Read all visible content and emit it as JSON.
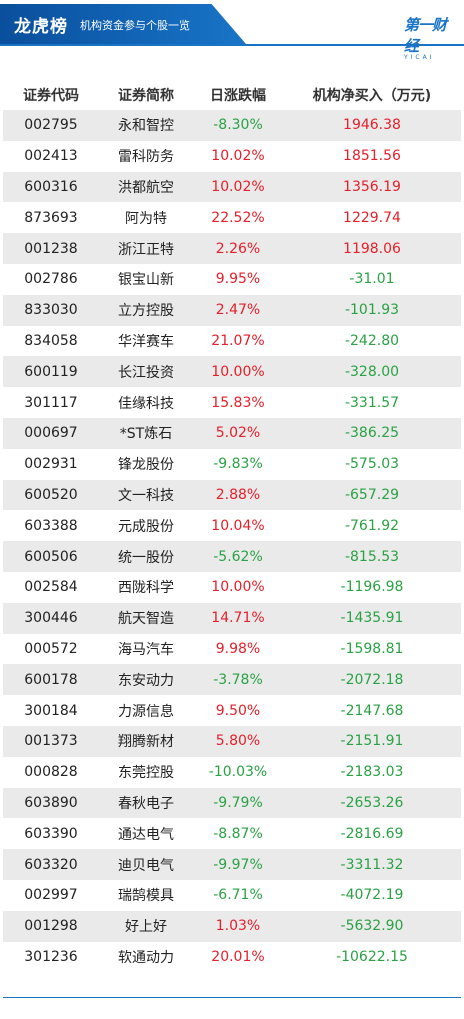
{
  "header": {
    "title": "龙虎榜",
    "subtitle": "机构资金参与个股一览",
    "logo_text": "第一财经",
    "logo_sub": "YICAI"
  },
  "colors": {
    "brand_blue": "#1a74c6",
    "up_red": "#e5202a",
    "down_green": "#2aa244",
    "stripe_gray": "#eaeaea"
  },
  "table": {
    "columns": [
      "证券代码",
      "证券简称",
      "日涨跌幅",
      "机构净买入（万元)"
    ],
    "rows": [
      {
        "code": "002795",
        "name": "永和智控",
        "change": "-8.30%",
        "net_buy": "1946.38"
      },
      {
        "code": "002413",
        "name": "雷科防务",
        "change": "10.02%",
        "net_buy": "1851.56"
      },
      {
        "code": "600316",
        "name": "洪都航空",
        "change": "10.02%",
        "net_buy": "1356.19"
      },
      {
        "code": "873693",
        "name": "阿为特",
        "change": "22.52%",
        "net_buy": "1229.74"
      },
      {
        "code": "001238",
        "name": "浙江正特",
        "change": "2.26%",
        "net_buy": "1198.06"
      },
      {
        "code": "002786",
        "name": "银宝山新",
        "change": "9.95%",
        "net_buy": "-31.01"
      },
      {
        "code": "833030",
        "name": "立方控股",
        "change": "2.47%",
        "net_buy": "-101.93"
      },
      {
        "code": "834058",
        "name": "华洋赛车",
        "change": "21.07%",
        "net_buy": "-242.80"
      },
      {
        "code": "600119",
        "name": "长江投资",
        "change": "10.00%",
        "net_buy": "-328.00"
      },
      {
        "code": "301117",
        "name": "佳缘科技",
        "change": "15.83%",
        "net_buy": "-331.57"
      },
      {
        "code": "000697",
        "name": "*ST炼石",
        "change": "5.02%",
        "net_buy": "-386.25"
      },
      {
        "code": "002931",
        "name": "锋龙股份",
        "change": "-9.83%",
        "net_buy": "-575.03"
      },
      {
        "code": "600520",
        "name": "文一科技",
        "change": "2.88%",
        "net_buy": "-657.29"
      },
      {
        "code": "603388",
        "name": "元成股份",
        "change": "10.04%",
        "net_buy": "-761.92"
      },
      {
        "code": "600506",
        "name": "统一股份",
        "change": "-5.62%",
        "net_buy": "-815.53"
      },
      {
        "code": "002584",
        "name": "西陇科学",
        "change": "10.00%",
        "net_buy": "-1196.98"
      },
      {
        "code": "300446",
        "name": "航天智造",
        "change": "14.71%",
        "net_buy": "-1435.91"
      },
      {
        "code": "000572",
        "name": "海马汽车",
        "change": "9.98%",
        "net_buy": "-1598.81"
      },
      {
        "code": "600178",
        "name": "东安动力",
        "change": "-3.78%",
        "net_buy": "-2072.18"
      },
      {
        "code": "300184",
        "name": "力源信息",
        "change": "9.50%",
        "net_buy": "-2147.68"
      },
      {
        "code": "001373",
        "name": "翔腾新材",
        "change": "5.80%",
        "net_buy": "-2151.91"
      },
      {
        "code": "000828",
        "name": "东莞控股",
        "change": "-10.03%",
        "net_buy": "-2183.03"
      },
      {
        "code": "603890",
        "name": "春秋电子",
        "change": "-9.79%",
        "net_buy": "-2653.26"
      },
      {
        "code": "603390",
        "name": "通达电气",
        "change": "-8.87%",
        "net_buy": "-2816.69"
      },
      {
        "code": "603320",
        "name": "迪贝电气",
        "change": "-9.97%",
        "net_buy": "-3311.32"
      },
      {
        "code": "002997",
        "name": "瑞鹄模具",
        "change": "-6.71%",
        "net_buy": "-4072.19"
      },
      {
        "code": "001298",
        "name": "好上好",
        "change": "1.03%",
        "net_buy": "-5632.90"
      },
      {
        "code": "301236",
        "name": "软通动力",
        "change": "20.01%",
        "net_buy": "-10622.15"
      }
    ]
  }
}
